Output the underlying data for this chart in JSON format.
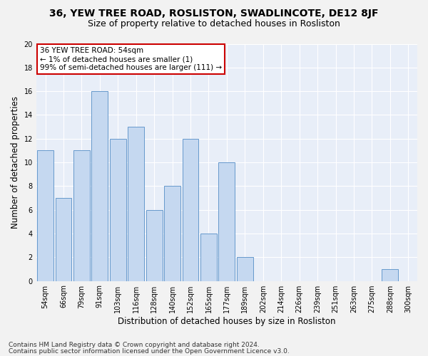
{
  "title": "36, YEW TREE ROAD, ROSLISTON, SWADLINCOTE, DE12 8JF",
  "subtitle": "Size of property relative to detached houses in Rosliston",
  "xlabel": "Distribution of detached houses by size in Rosliston",
  "ylabel": "Number of detached properties",
  "categories": [
    "54sqm",
    "66sqm",
    "79sqm",
    "91sqm",
    "103sqm",
    "116sqm",
    "128sqm",
    "140sqm",
    "152sqm",
    "165sqm",
    "177sqm",
    "189sqm",
    "202sqm",
    "214sqm",
    "226sqm",
    "239sqm",
    "251sqm",
    "263sqm",
    "275sqm",
    "288sqm",
    "300sqm"
  ],
  "values": [
    11,
    7,
    11,
    16,
    12,
    13,
    6,
    8,
    12,
    4,
    10,
    2,
    0,
    0,
    0,
    0,
    0,
    0,
    0,
    1,
    0
  ],
  "bar_color": "#c5d8f0",
  "bar_edge_color": "#6699cc",
  "annotation_text": "36 YEW TREE ROAD: 54sqm\n← 1% of detached houses are smaller (1)\n99% of semi-detached houses are larger (111) →",
  "annotation_box_color": "#ffffff",
  "annotation_box_edge": "#cc0000",
  "ylim": [
    0,
    20
  ],
  "yticks": [
    0,
    2,
    4,
    6,
    8,
    10,
    12,
    14,
    16,
    18,
    20
  ],
  "footer_line1": "Contains HM Land Registry data © Crown copyright and database right 2024.",
  "footer_line2": "Contains public sector information licensed under the Open Government Licence v3.0.",
  "bg_color": "#e8eef8",
  "fig_bg_color": "#f2f2f2",
  "grid_color": "#ffffff",
  "title_fontsize": 10,
  "subtitle_fontsize": 9,
  "axis_label_fontsize": 8.5,
  "tick_fontsize": 7,
  "footer_fontsize": 6.5,
  "annotation_fontsize": 7.5
}
